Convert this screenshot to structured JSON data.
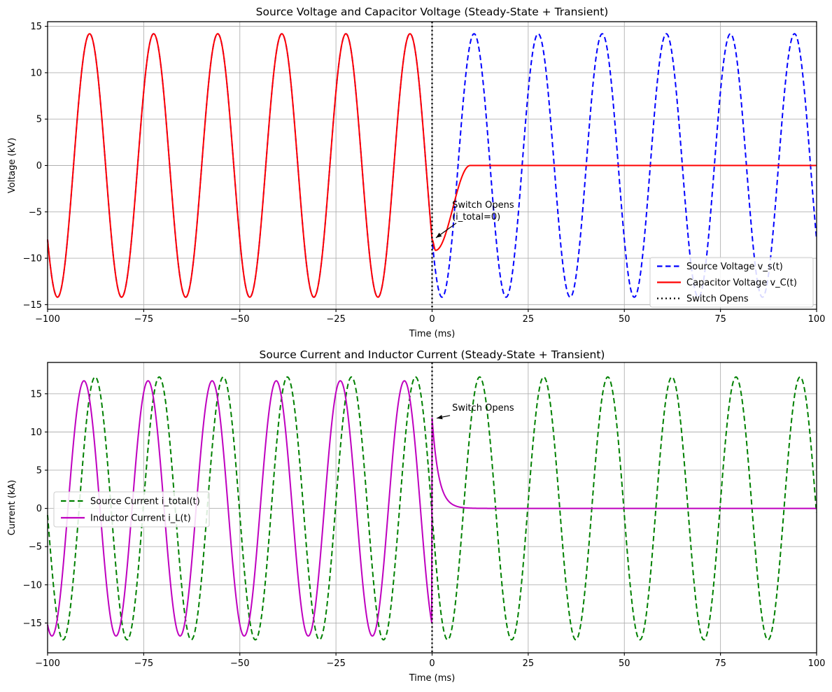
{
  "figure": {
    "background": "#ffffff"
  },
  "chart_data": [
    {
      "type": "line",
      "title": "Source Voltage and Capacitor Voltage (Steady-State + Transient)",
      "xlabel": "Time (ms)",
      "ylabel": "Voltage (kV)",
      "xlim": [
        -100,
        100
      ],
      "ylim": [
        -15.5,
        15.5
      ],
      "xticks": [
        -100,
        -75,
        -50,
        -25,
        0,
        25,
        50,
        75,
        100
      ],
      "yticks": [
        -15,
        -10,
        -5,
        0,
        5,
        10,
        15
      ],
      "grid": true,
      "grid_color": "#b0b0b0",
      "series": [
        {
          "name": "source-voltage",
          "label": "Source Voltage v_s(t)",
          "color": "#0000ff",
          "style": "dashed",
          "width": 2,
          "amplitude_kV": 14.2,
          "frequency_hz": 60,
          "segments": [
            {
              "kind": "cos",
              "amp": 14.2,
              "freq_hz": 60,
              "peak_t_ms": -5.75,
              "t0": -100,
              "t1": 100
            }
          ]
        },
        {
          "name": "capacitor-voltage",
          "label": "Capacitor Voltage v_C(t)",
          "color": "#ff0000",
          "style": "solid",
          "width": 2,
          "amplitude_kV": 14.2,
          "frequency_hz": 60,
          "segments": [
            {
              "kind": "cos",
              "amp": 14.2,
              "freq_hz": 60,
              "peak_t_ms": -5.75,
              "t0": -100,
              "t1": 0
            },
            {
              "kind": "ease",
              "v0": -8.0,
              "v1": -9.15,
              "t0": 0,
              "t1": 0.9
            },
            {
              "kind": "ease",
              "v0": -9.15,
              "v1": 0,
              "t0": 0.9,
              "t1": 9.9
            },
            {
              "kind": "ease",
              "v0": 0,
              "v1": 0,
              "t0": 9.9,
              "t1": 100
            }
          ]
        },
        {
          "name": "switch-open-line",
          "label": "Switch Opens",
          "color": "#000000",
          "style": "dotted",
          "width": 2.2,
          "vline_at": 0
        }
      ],
      "legend": {
        "position": "lower-right",
        "items": [
          {
            "label": "Source Voltage v_s(t)",
            "color": "#0000ff",
            "style": "dashed"
          },
          {
            "label": "Capacitor Voltage v_C(t)",
            "color": "#ff0000",
            "style": "solid"
          },
          {
            "label": "Switch Opens",
            "color": "#000000",
            "style": "dotted"
          }
        ]
      },
      "annotations": [
        {
          "lines": [
            "Switch Opens",
            "(i_total=0)"
          ],
          "text_at": [
            5.2,
            -4.55
          ],
          "arrow_tip": [
            1.0,
            -7.8
          ]
        }
      ]
    },
    {
      "type": "line",
      "title": "Source Current and Inductor Current (Steady-State + Transient)",
      "xlabel": "Time (ms)",
      "ylabel": "Current (kA)",
      "xlim": [
        -100,
        100
      ],
      "ylim": [
        -18.9,
        19.1
      ],
      "xticks": [
        -100,
        -75,
        -50,
        -25,
        0,
        25,
        50,
        75,
        100
      ],
      "yticks": [
        -15,
        -10,
        -5,
        0,
        5,
        10,
        15
      ],
      "grid": true,
      "grid_color": "#b0b0b0",
      "series": [
        {
          "name": "source-current",
          "label": "Source Current i_total(t)",
          "color": "#008000",
          "style": "dashed",
          "width": 2,
          "amplitude_kA": 17.2,
          "frequency_hz": 60,
          "segments": [
            {
              "kind": "cos",
              "amp": 17.2,
              "freq_hz": 60,
              "peak_t_ms": -4.3,
              "t0": -100,
              "t1": 100
            }
          ]
        },
        {
          "name": "inductor-current",
          "label": "Inductor Current i_L(t)",
          "color": "#bf00bf",
          "style": "solid",
          "width": 2,
          "amplitude_kA": 16.7,
          "frequency_hz": 60,
          "segments": [
            {
              "kind": "cos",
              "amp": 16.7,
              "freq_hz": 60,
              "peak_t_ms": -7.2,
              "t0": -100,
              "t1": 0
            },
            {
              "kind": "exp",
              "start_value": 11.8,
              "tau_ms": 1.7,
              "t_start": 0,
              "t0": 0,
              "t1": 100
            }
          ]
        },
        {
          "name": "switch-open-line",
          "label": "",
          "color": "#000000",
          "style": "dotted",
          "width": 2.2,
          "vline_at": 0
        }
      ],
      "legend": {
        "position": "center-left",
        "items": [
          {
            "label": "Source Current i_total(t)",
            "color": "#008000",
            "style": "dashed"
          },
          {
            "label": "Inductor Current i_L(t)",
            "color": "#bf00bf",
            "style": "solid"
          }
        ]
      },
      "annotations": [
        {
          "lines": [
            "Switch Opens"
          ],
          "text_at": [
            5.2,
            12.8
          ],
          "arrow_tip": [
            1.2,
            11.8
          ]
        }
      ]
    }
  ]
}
